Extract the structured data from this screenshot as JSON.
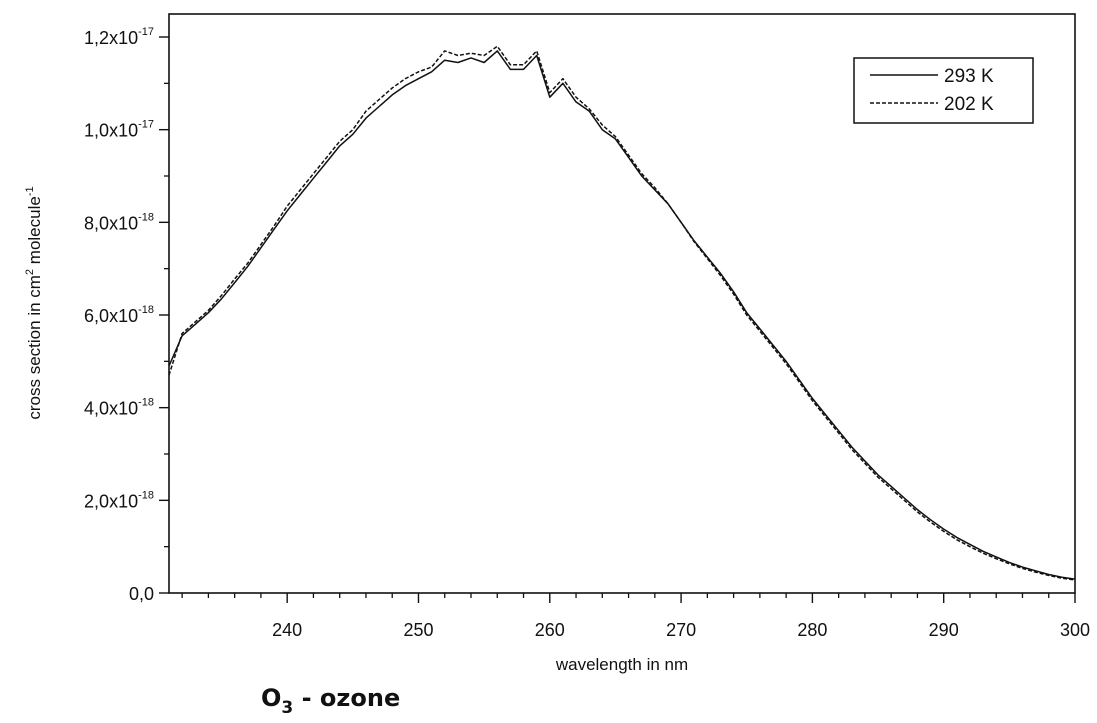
{
  "chart_data": {
    "type": "line",
    "xlabel": "wavelength in nm",
    "ylabel_parts": {
      "main": "cross section in cm",
      "sup1": "2",
      "mid": " molecule",
      "sup2": "-1"
    },
    "xlim": [
      231,
      300
    ],
    "ylim": [
      0,
      1.2e-17
    ],
    "x_ticks": [
      {
        "value": 240,
        "label": "240"
      },
      {
        "value": 250,
        "label": "250"
      },
      {
        "value": 260,
        "label": "260"
      },
      {
        "value": 270,
        "label": "270"
      },
      {
        "value": 280,
        "label": "280"
      },
      {
        "value": 290,
        "label": "290"
      },
      {
        "value": 300,
        "label": "300"
      }
    ],
    "y_ticks": [
      {
        "value": 0,
        "label": "0,0",
        "exp": ""
      },
      {
        "value": 2e-18,
        "label": "2,0x10",
        "exp": "-18"
      },
      {
        "value": 4e-18,
        "label": "4,0x10",
        "exp": "-18"
      },
      {
        "value": 6e-18,
        "label": "6,0x10",
        "exp": "-18"
      },
      {
        "value": 8e-18,
        "label": "8,0x10",
        "exp": "-18"
      },
      {
        "value": 1e-17,
        "label": "1,0x10",
        "exp": "-17"
      },
      {
        "value": 1.2e-17,
        "label": "1,2x10",
        "exp": "-17"
      }
    ],
    "legend_position": "top-right",
    "series": [
      {
        "name": "293 K",
        "line_style": "solid",
        "x": [
          231,
          232,
          233,
          234,
          235,
          236,
          237,
          238,
          239,
          240,
          241,
          242,
          243,
          244,
          245,
          246,
          247,
          248,
          249,
          250,
          251,
          252,
          253,
          254,
          255,
          256,
          257,
          258,
          259,
          260,
          261,
          262,
          263,
          264,
          265,
          266,
          267,
          268,
          269,
          270,
          271,
          272,
          273,
          274,
          275,
          276,
          277,
          278,
          279,
          280,
          281,
          282,
          283,
          284,
          285,
          286,
          287,
          288,
          289,
          290,
          291,
          292,
          293,
          294,
          295,
          296,
          297,
          298,
          299,
          300
        ],
        "y": [
          4.9e-18,
          5.55e-18,
          5.8e-18,
          6.05e-18,
          6.35e-18,
          6.7e-18,
          7.05e-18,
          7.45e-18,
          7.85e-18,
          8.25e-18,
          8.6e-18,
          8.95e-18,
          9.3e-18,
          9.65e-18,
          9.9e-18,
          1.025e-17,
          1.05e-17,
          1.075e-17,
          1.095e-17,
          1.11e-17,
          1.125e-17,
          1.15e-17,
          1.145e-17,
          1.155e-17,
          1.145e-17,
          1.17e-17,
          1.13e-17,
          1.13e-17,
          1.16e-17,
          1.07e-17,
          1.1e-17,
          1.06e-17,
          1.04e-17,
          1e-17,
          9.8e-18,
          9.4e-18,
          9e-18,
          8.7e-18,
          8.4e-18,
          8e-18,
          7.6e-18,
          7.25e-18,
          6.9e-18,
          6.5e-18,
          6.05e-18,
          5.7e-18,
          5.35e-18,
          5e-18,
          4.6e-18,
          4.2e-18,
          3.85e-18,
          3.5e-18,
          3.15e-18,
          2.85e-18,
          2.55e-18,
          2.3e-18,
          2.05e-18,
          1.8e-18,
          1.58e-18,
          1.38e-18,
          1.2e-18,
          1.05e-18,
          9e-19,
          7.8e-19,
          6.6e-19,
          5.6e-19,
          4.8e-19,
          4e-19,
          3.4e-19,
          3e-19
        ]
      },
      {
        "name": "202 K",
        "line_style": "dashed",
        "x": [
          231,
          232,
          233,
          234,
          235,
          236,
          237,
          238,
          239,
          240,
          241,
          242,
          243,
          244,
          245,
          246,
          247,
          248,
          249,
          250,
          251,
          252,
          253,
          254,
          255,
          256,
          257,
          258,
          259,
          260,
          261,
          262,
          263,
          264,
          265,
          266,
          267,
          268,
          269,
          270,
          271,
          272,
          273,
          274,
          275,
          276,
          277,
          278,
          279,
          280,
          281,
          282,
          283,
          284,
          285,
          286,
          287,
          288,
          289,
          290,
          291,
          292,
          293,
          294,
          295,
          296,
          297,
          298,
          299,
          300
        ],
        "y": [
          4.7e-18,
          5.6e-18,
          5.85e-18,
          6.1e-18,
          6.42e-18,
          6.78e-18,
          7.12e-18,
          7.52e-18,
          7.92e-18,
          8.35e-18,
          8.7e-18,
          9.05e-18,
          9.4e-18,
          9.75e-18,
          1e-17,
          1.04e-17,
          1.065e-17,
          1.09e-17,
          1.11e-17,
          1.125e-17,
          1.135e-17,
          1.17e-17,
          1.16e-17,
          1.165e-17,
          1.16e-17,
          1.18e-17,
          1.14e-17,
          1.14e-17,
          1.17e-17,
          1.08e-17,
          1.11e-17,
          1.07e-17,
          1.045e-17,
          1.01e-17,
          9.85e-18,
          9.45e-18,
          9.05e-18,
          8.75e-18,
          8.4e-18,
          8e-18,
          7.58e-18,
          7.22e-18,
          6.85e-18,
          6.45e-18,
          6e-18,
          5.65e-18,
          5.3e-18,
          4.95e-18,
          4.55e-18,
          4.15e-18,
          3.8e-18,
          3.45e-18,
          3.1e-18,
          2.8e-18,
          2.5e-18,
          2.25e-18,
          2e-18,
          1.75e-18,
          1.53e-18,
          1.33e-18,
          1.15e-18,
          1e-18,
          8.6e-19,
          7.4e-19,
          6.3e-19,
          5.3e-19,
          4.5e-19,
          3.8e-19,
          3.2e-19,
          2.8e-19
        ]
      }
    ]
  },
  "caption": {
    "molecule": "O",
    "subscript": "3",
    "suffix": " - ozone"
  }
}
